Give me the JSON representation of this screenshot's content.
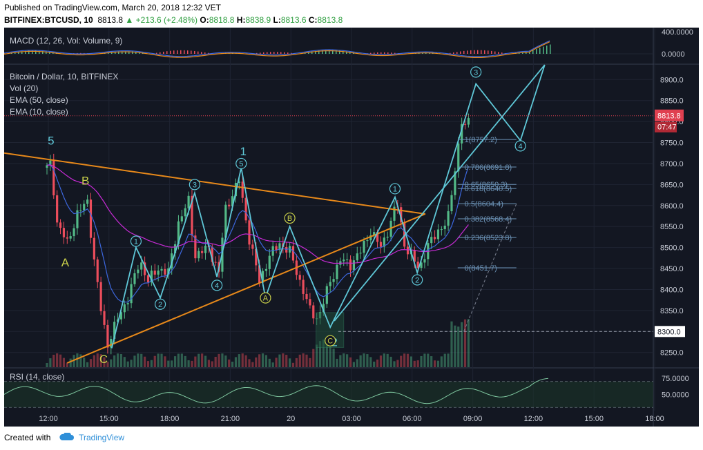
{
  "header": {
    "published": "Published on TradingView.com, March 20, 2018 12:32 VET",
    "symbol": "BITFINEX:BTCUSD, 10",
    "last": "8813.8",
    "change": "+213.6 (+2.48%)",
    "o_label": "O:",
    "o": "8818.8",
    "h_label": "H:",
    "h": "8838.9",
    "l_label": "L:",
    "l": "8813.6",
    "c_label": "C:",
    "c": "8813.8"
  },
  "legend": {
    "macd": "MACD (12, 26, Vol: Volume, 9)",
    "pair": "Bitcoin / Dollar, 10, BITFINEX",
    "vol": "Vol (20)",
    "ema50": "EMA (50, close)",
    "ema10": "EMA (10, close)",
    "rsi": "RSI (14, close)"
  },
  "footer": {
    "created_with": "Created with",
    "brand": "TradingView"
  },
  "colors": {
    "background": "#131722",
    "up": "#53b987",
    "down": "#eb4d5c",
    "wave": "#5fc8d8",
    "trendline": "#e8891a",
    "ema10": "#3d68e0",
    "ema50": "#c82bd6",
    "abc_label": "#c9d04a",
    "fib": "#6d94b8",
    "price_line": "#e04050"
  },
  "chart_data": [
    {
      "type": "line",
      "title": "MACD (12, 26, Vol: Volume, 9)",
      "y_ticks": [
        "400.0000",
        "0.0000"
      ]
    },
    {
      "type": "candlestick",
      "title": "Bitcoin / Dollar, 10, BITFINEX",
      "x_ticks": [
        "12:00",
        "15:00",
        "18:00",
        "21:00",
        "20",
        "03:00",
        "06:00",
        "09:00",
        "12:00",
        "15:00",
        "18:00"
      ],
      "y_ticks": [
        8900,
        8850,
        8800,
        8750,
        8700,
        8650,
        8600,
        8550,
        8500,
        8450,
        8400,
        8350,
        8300,
        8250
      ],
      "ylim": [
        8215,
        8935
      ],
      "last_price": "8813.8",
      "countdown": "07:47",
      "support_label": "8300.0",
      "support_level": 8300,
      "close_path": [
        {
          "t": 0,
          "p": 8690
        },
        {
          "t": 0.2,
          "p": 8700
        },
        {
          "t": 0.5,
          "p": 8560
        },
        {
          "t": 1,
          "p": 8510
        },
        {
          "t": 1.5,
          "p": 8580
        },
        {
          "t": 2,
          "p": 8610
        },
        {
          "t": 2.3,
          "p": 8480
        },
        {
          "t": 2.7,
          "p": 8340
        },
        {
          "t": 3,
          "p": 8270
        },
        {
          "t": 3.5,
          "p": 8330
        },
        {
          "t": 4,
          "p": 8380
        },
        {
          "t": 4.6,
          "p": 8470
        },
        {
          "t": 5,
          "p": 8420
        },
        {
          "t": 5.5,
          "p": 8450
        },
        {
          "t": 6,
          "p": 8440
        },
        {
          "t": 6.5,
          "p": 8560
        },
        {
          "t": 7,
          "p": 8610
        },
        {
          "t": 7.3,
          "p": 8480
        },
        {
          "t": 8,
          "p": 8500
        },
        {
          "t": 8.5,
          "p": 8440
        },
        {
          "t": 8.8,
          "p": 8590
        },
        {
          "t": 9.5,
          "p": 8660
        },
        {
          "t": 10,
          "p": 8520
        },
        {
          "t": 10.5,
          "p": 8420
        },
        {
          "t": 11,
          "p": 8480
        },
        {
          "t": 11.5,
          "p": 8510
        },
        {
          "t": 12,
          "p": 8490
        },
        {
          "t": 12.5,
          "p": 8420
        },
        {
          "t": 13,
          "p": 8350
        },
        {
          "t": 13.4,
          "p": 8330
        },
        {
          "t": 14,
          "p": 8420
        },
        {
          "t": 14.5,
          "p": 8470
        },
        {
          "t": 15,
          "p": 8460
        },
        {
          "t": 15.5,
          "p": 8490
        },
        {
          "t": 16,
          "p": 8540
        },
        {
          "t": 16.5,
          "p": 8500
        },
        {
          "t": 17,
          "p": 8560
        },
        {
          "t": 17.3,
          "p": 8610
        },
        {
          "t": 17.7,
          "p": 8500
        },
        {
          "t": 18,
          "p": 8480
        },
        {
          "t": 18.4,
          "p": 8450
        },
        {
          "t": 18.8,
          "p": 8500
        },
        {
          "t": 19.3,
          "p": 8540
        },
        {
          "t": 19.8,
          "p": 8560
        },
        {
          "t": 20.2,
          "p": 8700
        },
        {
          "t": 20.5,
          "p": 8800
        },
        {
          "t": 20.7,
          "p": 8780
        },
        {
          "t": 20.9,
          "p": 8813.8
        }
      ],
      "wave_counts": [
        {
          "label": "5",
          "t": 0.2,
          "p": 8745
        },
        {
          "label": "B",
          "t": 1.9,
          "p": 8650
        },
        {
          "label": "A",
          "t": 0.9,
          "p": 8455
        },
        {
          "label": "C",
          "t": 2.8,
          "p": 8225
        },
        {
          "label": "1",
          "t": 9.7,
          "p": 8720
        },
        {
          "label": "2",
          "t": 14.2,
          "p": 8265
        }
      ],
      "circled_labels": [
        {
          "label": "1",
          "t": 4.4,
          "p": 8515
        },
        {
          "label": "2",
          "t": 5.6,
          "p": 8365
        },
        {
          "label": "3",
          "t": 7.3,
          "p": 8650
        },
        {
          "label": "4",
          "t": 8.4,
          "p": 8410
        },
        {
          "label": "5",
          "t": 9.6,
          "p": 8700
        },
        {
          "label": "A",
          "t": 10.8,
          "p": 8380
        },
        {
          "label": "B",
          "t": 12.0,
          "p": 8570
        },
        {
          "label": "C",
          "t": 14.0,
          "p": 8278
        },
        {
          "label": "1",
          "t": 17.2,
          "p": 8640
        },
        {
          "label": "2",
          "t": 18.3,
          "p": 8423
        },
        {
          "label": "3",
          "t": 21.2,
          "p": 8918
        },
        {
          "label": "4",
          "t": 23.4,
          "p": 8742
        }
      ],
      "fibonacci": [
        {
          "label": "1(8757.2)",
          "value": 8757.2
        },
        {
          "label": "0.786(8691.8)",
          "value": 8691.8
        },
        {
          "label": "0.65(8650.3)",
          "value": 8650.3
        },
        {
          "label": "0.618(8640.5)",
          "value": 8640.5
        },
        {
          "label": "0.5(8604.4)",
          "value": 8604.4
        },
        {
          "label": "0.382(8568.4)",
          "value": 8568.4
        },
        {
          "label": "0.236(8523.8)",
          "value": 8523.8
        },
        {
          "label": "0(8451.7)",
          "value": 8451.7
        }
      ]
    },
    {
      "type": "line",
      "title": "RSI (14, close)",
      "y_ticks": [
        "75.0000",
        "50.0000"
      ],
      "ylim": [
        25,
        90
      ],
      "bands": [
        70,
        30
      ]
    }
  ]
}
